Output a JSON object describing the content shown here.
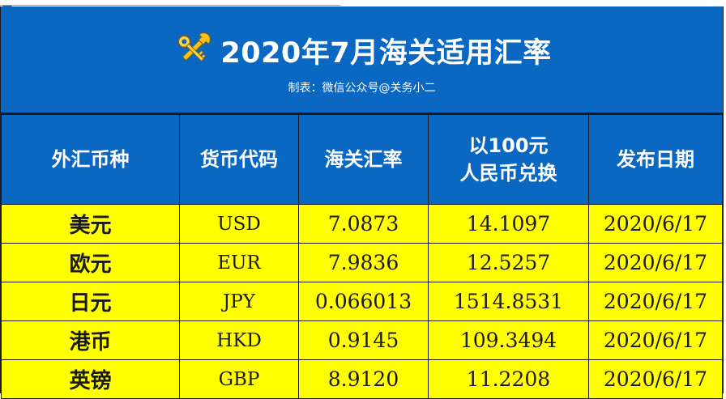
{
  "title": {
    "icon": "keys-tools-icon",
    "text": "2020年7月海关适用汇率",
    "subtitle": "制表：微信公众号@关务小二"
  },
  "table": {
    "headers": [
      {
        "lines": [
          "外汇币种"
        ]
      },
      {
        "lines": [
          "货币代码"
        ]
      },
      {
        "lines": [
          "海关汇率"
        ]
      },
      {
        "lines": [
          "以100元",
          "人民币兑换"
        ]
      },
      {
        "lines": [
          "发布日期"
        ]
      }
    ],
    "rows": [
      {
        "currency": "美元",
        "code": "USD",
        "rate": "7.0873",
        "per100": "14.1097",
        "date": "2020/6/17"
      },
      {
        "currency": "欧元",
        "code": "EUR",
        "rate": "7.9836",
        "per100": "12.5257",
        "date": "2020/6/17"
      },
      {
        "currency": "日元",
        "code": "JPY",
        "rate": "0.066013",
        "per100": "1514.8531",
        "date": "2020/6/17"
      },
      {
        "currency": "港币",
        "code": "HKD",
        "rate": "0.9145",
        "per100": "109.3494",
        "date": "2020/6/17"
      },
      {
        "currency": "英镑",
        "code": "GBP",
        "rate": "8.9120",
        "per100": "11.2208",
        "date": "2020/6/17"
      }
    ]
  },
  "colors": {
    "header_blue": "#0a67c2",
    "row_yellow": "#ffff00"
  }
}
